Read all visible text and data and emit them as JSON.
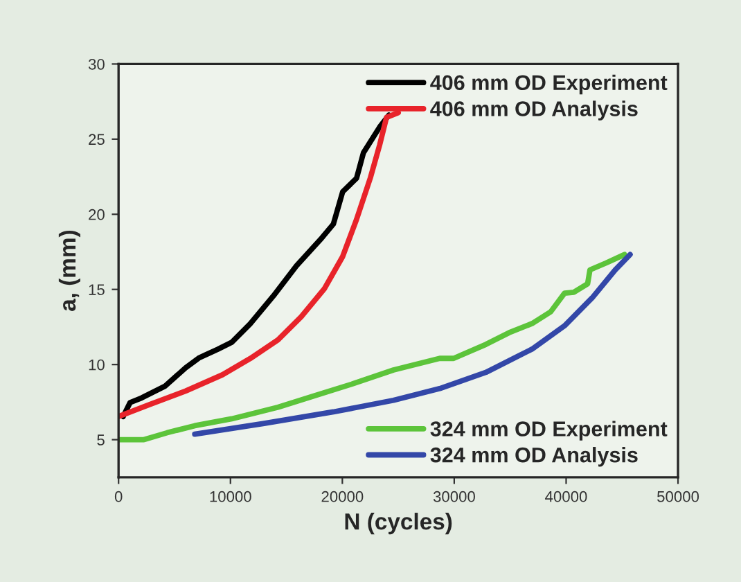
{
  "chart_data": {
    "type": "line",
    "xlabel": "N (cycles)",
    "ylabel": "a, (mm)",
    "xlim": [
      0,
      50000
    ],
    "ylim": [
      2.5,
      30
    ],
    "xticks": [
      0,
      10000,
      20000,
      30000,
      40000,
      50000
    ],
    "yticks": [
      5,
      10,
      15,
      20,
      25,
      30
    ],
    "grid": false,
    "legend": "right",
    "line_style": "solid",
    "marker": "none",
    "series": [
      {
        "name": "406 mm OD Experiment",
        "color": "#000000",
        "x": [
          410,
          1030,
          2060,
          4130,
          5990,
          7230,
          8880,
          10120,
          11770,
          13840,
          15900,
          18170,
          19200,
          20030,
          21270,
          21890,
          23330,
          24160
        ],
        "values": [
          6.54,
          7.47,
          7.78,
          8.55,
          9.78,
          10.46,
          11.02,
          11.48,
          12.72,
          14.57,
          16.57,
          18.43,
          19.35,
          21.5,
          22.4,
          24.1,
          25.8,
          26.6
        ]
      },
      {
        "name": "406 mm OD Analysis",
        "color": "#e8232a",
        "x": [
          0,
          2690,
          5990,
          9290,
          11770,
          14250,
          16320,
          18380,
          20030,
          21270,
          22510,
          23330,
          23950,
          25000
        ],
        "values": [
          6.54,
          7.31,
          8.24,
          9.32,
          10.4,
          11.64,
          13.18,
          15.03,
          17.19,
          19.66,
          22.44,
          24.6,
          26.45,
          26.76
        ]
      },
      {
        "name": "324 mm OD Experiment",
        "color": "#5cc43a",
        "x": [
          0,
          2270,
          4340,
          6810,
          10120,
          14250,
          17550,
          20850,
          24570,
          28700,
          29950,
          32830,
          34900,
          36960,
          38620,
          39860,
          40680,
          41920,
          42130,
          43580,
          45220
        ],
        "values": [
          5,
          5,
          5.46,
          5.93,
          6.39,
          7.16,
          7.93,
          8.7,
          9.64,
          10.41,
          10.41,
          11.34,
          12.12,
          12.73,
          13.51,
          14.75,
          14.81,
          15.37,
          16.3,
          16.76,
          17.32
        ]
      },
      {
        "name": "324 mm OD Analysis",
        "color": "#3347a8",
        "x": [
          6810,
          13010,
          19200,
          24570,
          28700,
          32830,
          36960,
          39860,
          42330,
          44390,
          45720
        ],
        "values": [
          5.37,
          6.08,
          6.85,
          7.62,
          8.4,
          9.48,
          11.03,
          12.58,
          14.44,
          16.3,
          17.32
        ]
      }
    ]
  }
}
